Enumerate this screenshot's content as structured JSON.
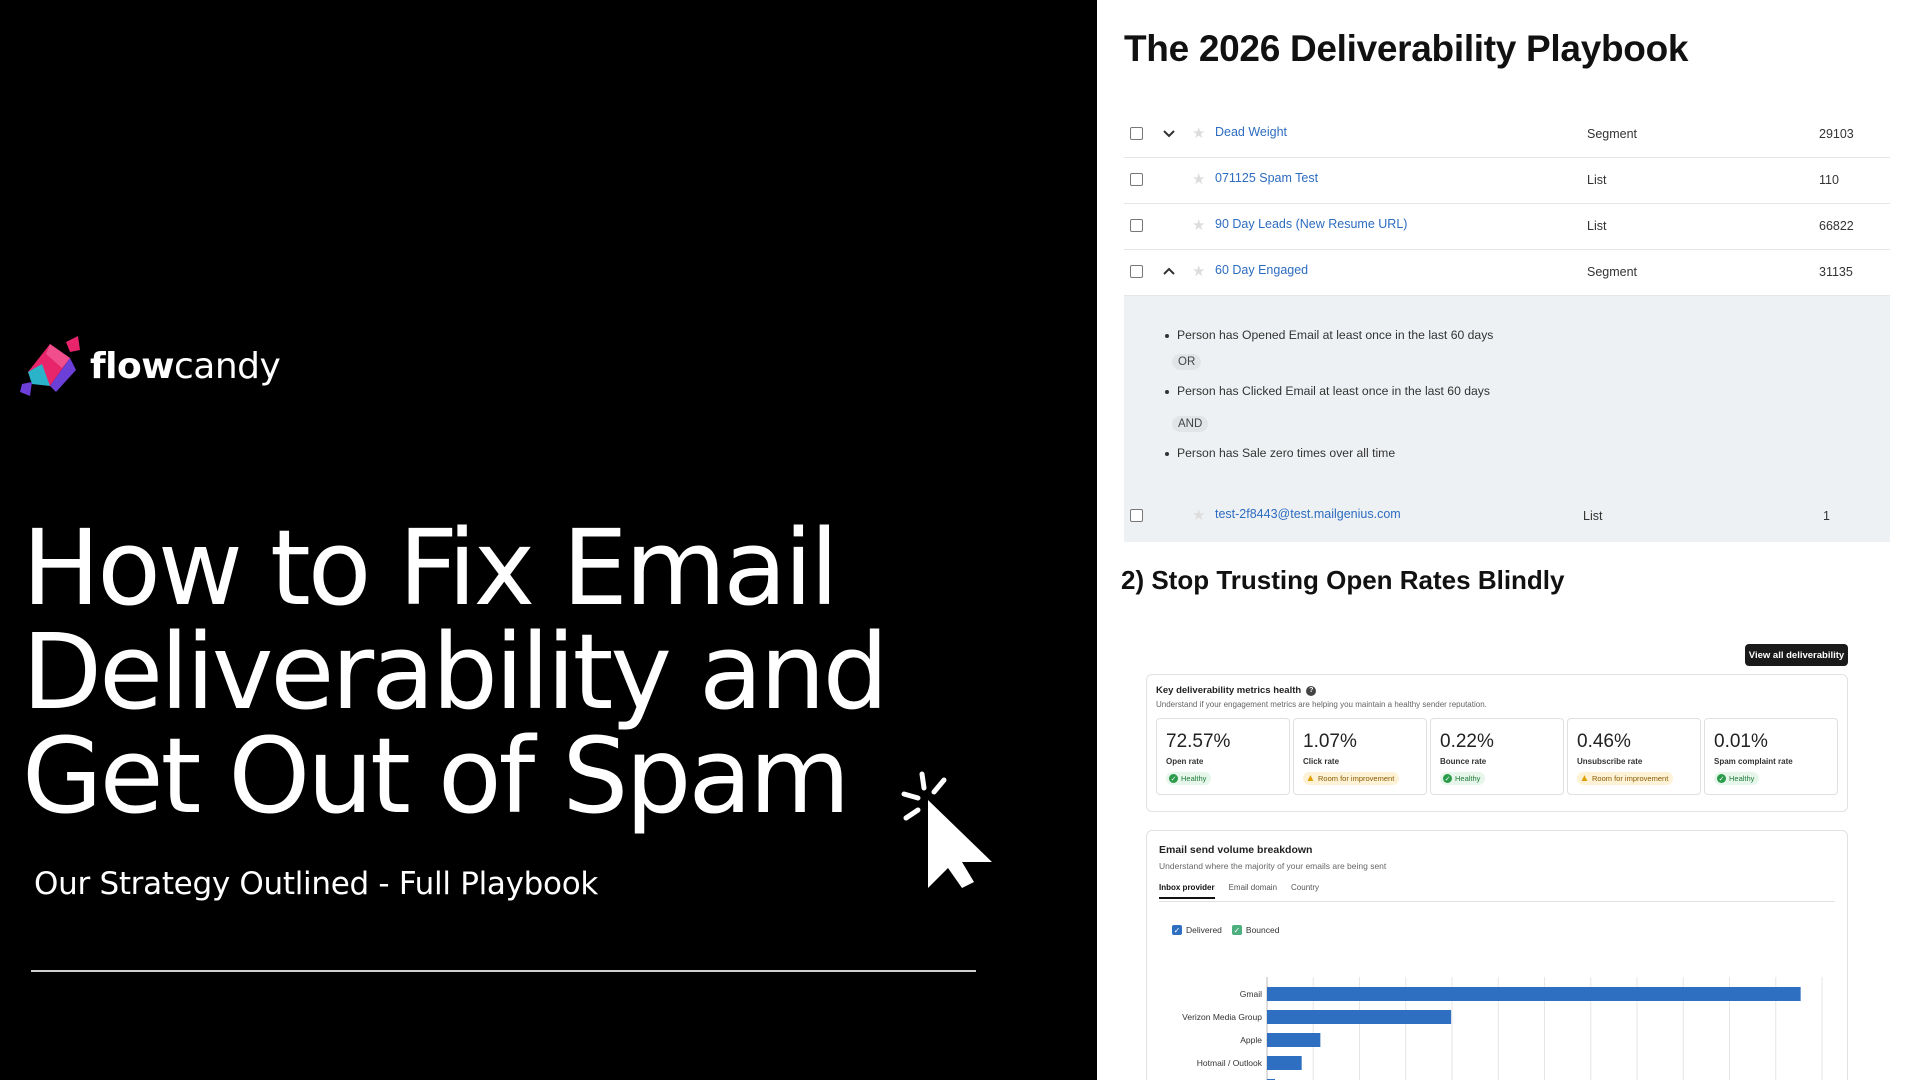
{
  "brand": {
    "name_bold": "flow",
    "name_light": "candy"
  },
  "headline": {
    "line1": "How to Fix Email",
    "line2": "Deliverability and",
    "line3": "Get Out of Spam"
  },
  "subtitle": "Our Strategy Outlined - Full Playbook",
  "doc": {
    "title": "The 2026 Deliverability Playbook",
    "rows": [
      {
        "name": "Dead Weight",
        "type": "Segment",
        "count": "29103",
        "chevron": "chevron-down"
      },
      {
        "name": "071125 Spam Test",
        "type": "List",
        "count": "110",
        "chevron": ""
      },
      {
        "name": "90 Day Leads (New Resume URL)",
        "type": "List",
        "count": "66822",
        "chevron": ""
      },
      {
        "name": "60 Day Engaged",
        "type": "Segment",
        "count": "31135",
        "chevron": "chevron-up"
      }
    ],
    "criteria": {
      "c1": "Person has Opened Email at least once in the last 60 days",
      "op1": "OR",
      "c2": "Person has Clicked Email at least once in the last 60 days",
      "op2": "AND",
      "c3": "Person has Sale zero times over all time"
    },
    "last_row": {
      "name": "test-2f8443@test.mailgenius.com",
      "type": "List",
      "count": "1"
    },
    "section2": "2) Stop Trusting Open Rates Blindly"
  },
  "metrics": {
    "view_all": "View all deliverability",
    "title": "Key deliverability metrics health",
    "subtitle": "Understand if your engagement metrics are helping you maintain a healthy sender reputation.",
    "items": [
      {
        "value": "72.57%",
        "label": "Open rate",
        "status": "Healthy",
        "kind": "ok"
      },
      {
        "value": "1.07%",
        "label": "Click rate",
        "status": "Room for improvement",
        "kind": "warn"
      },
      {
        "value": "0.22%",
        "label": "Bounce rate",
        "status": "Healthy",
        "kind": "ok"
      },
      {
        "value": "0.46%",
        "label": "Unsubscribe rate",
        "status": "Room for improvement",
        "kind": "warn"
      },
      {
        "value": "0.01%",
        "label": "Spam complaint rate",
        "status": "Healthy",
        "kind": "ok"
      }
    ]
  },
  "volume": {
    "title": "Email send volume breakdown",
    "subtitle": "Understand where the majority of your emails are being sent",
    "tabs": [
      "Inbox provider",
      "Email domain",
      "Country"
    ],
    "legend": [
      {
        "label": "Delivered",
        "color": "#2f6fc1"
      },
      {
        "label": "Bounced",
        "color": "#4caf7d"
      }
    ]
  },
  "colors": {
    "bar": "#2f6fc1",
    "link": "#2d6cc0"
  },
  "chart_data": {
    "type": "bar",
    "orientation": "horizontal",
    "categories": [
      "Gmail",
      "Verizon Media Group",
      "Apple",
      "Hotmail / Outlook",
      ""
    ],
    "series": [
      {
        "name": "Delivered",
        "values": [
          100,
          34.5,
          10,
          6.5,
          1.5
        ]
      }
    ],
    "xlim": [
      0,
      104
    ],
    "grid": true
  }
}
